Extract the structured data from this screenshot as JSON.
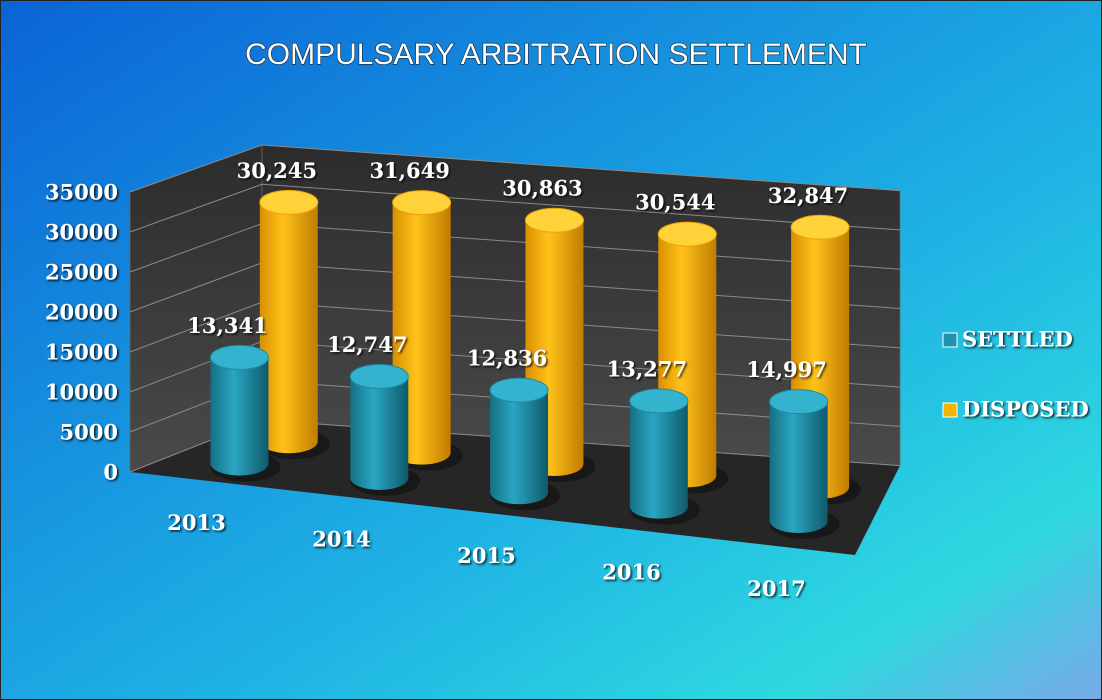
{
  "chart_data": {
    "type": "bar3d",
    "title": "COMPULSARY ARBITRATION SETTLEMENT",
    "categories": [
      "2013",
      "2014",
      "2015",
      "2016",
      "2017"
    ],
    "series": [
      {
        "name": "SETTLED",
        "color": "#1f93ad",
        "values": [
          13341,
          12747,
          12836,
          13277,
          14997
        ],
        "value_labels": [
          "13,341",
          "12,747",
          "12,836",
          "13,277",
          "14,997"
        ]
      },
      {
        "name": "DISPOSED",
        "color": "#f5b300",
        "values": [
          30245,
          31649,
          30863,
          30544,
          32847
        ],
        "value_labels": [
          "30,245",
          "31,649",
          "30,863",
          "30,544",
          "32,847"
        ]
      }
    ],
    "ylim": [
      0,
      35000
    ],
    "yticks": [
      0,
      5000,
      10000,
      15000,
      20000,
      25000,
      30000,
      35000
    ],
    "grid": true,
    "legend": "right"
  }
}
